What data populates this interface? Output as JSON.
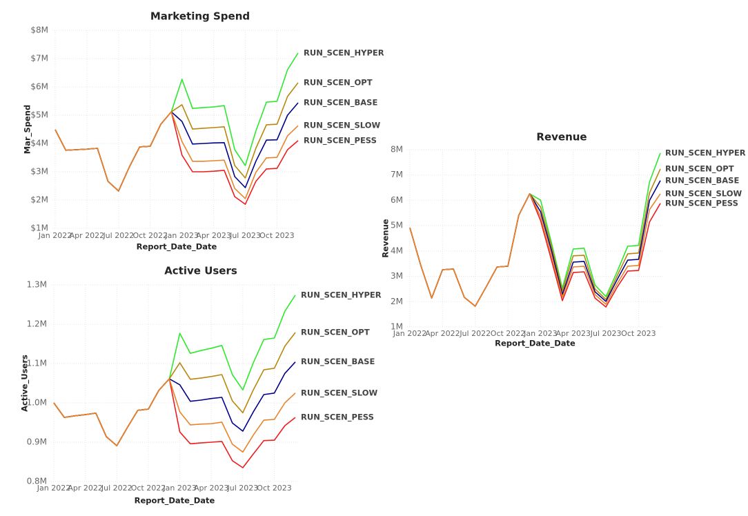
{
  "chart_data": [
    {
      "type": "line",
      "title": "Marketing Spend",
      "x_label": "Report_Date_Date",
      "y_label": "Mar_Spend",
      "categories": [
        "Jan 2022",
        null,
        null,
        "Apr 2022",
        null,
        null,
        "Jul 2022",
        null,
        null,
        "Oct 2022",
        null,
        null,
        "Jan 2023",
        null,
        null,
        "Apr 2023",
        null,
        null,
        "Jul 2023",
        null,
        null,
        "Oct 2023",
        null,
        null
      ],
      "ylim": [
        1000000,
        8000000
      ],
      "yticks": [
        {
          "value": 1000000,
          "label": "$1M"
        },
        {
          "value": 2000000,
          "label": "$2M"
        },
        {
          "value": 3000000,
          "label": "$3M"
        },
        {
          "value": 4000000,
          "label": "$4M"
        },
        {
          "value": 5000000,
          "label": "$5M"
        },
        {
          "value": 6000000,
          "label": "$6M"
        },
        {
          "value": 7000000,
          "label": "$7M"
        },
        {
          "value": 8000000,
          "label": "$8M"
        }
      ],
      "grid": true,
      "series": [
        {
          "name": "RUN_SCEN_HYPER",
          "color": "#2ee82e",
          "values": [
            4490000,
            3760000,
            3780000,
            3800000,
            3830000,
            2660000,
            2320000,
            3150000,
            3880000,
            3900000,
            4680000,
            5120000,
            6270000,
            5240000,
            5270000,
            5290000,
            5340000,
            3780000,
            3220000,
            4440000,
            5460000,
            5490000,
            6610000,
            7200000
          ]
        },
        {
          "name": "RUN_SCEN_OPT",
          "color": "#b8860b",
          "values": [
            4490000,
            3760000,
            3780000,
            3800000,
            3830000,
            2660000,
            2320000,
            3150000,
            3880000,
            3900000,
            4680000,
            5120000,
            5370000,
            4510000,
            4540000,
            4560000,
            4590000,
            3220000,
            2780000,
            3830000,
            4660000,
            4680000,
            5660000,
            6150000
          ]
        },
        {
          "name": "RUN_SCEN_BASE",
          "color": "#00008b",
          "values": [
            4490000,
            3760000,
            3780000,
            3800000,
            3830000,
            2660000,
            2320000,
            3150000,
            3880000,
            3900000,
            4680000,
            5120000,
            4780000,
            3980000,
            4000000,
            4020000,
            4030000,
            2830000,
            2440000,
            3370000,
            4120000,
            4130000,
            5000000,
            5440000
          ]
        },
        {
          "name": "RUN_SCEN_PESS",
          "color": "#ee1c1c",
          "values": [
            4490000,
            3760000,
            3780000,
            3800000,
            3830000,
            2660000,
            2320000,
            3150000,
            3880000,
            3900000,
            4680000,
            5120000,
            3590000,
            3000000,
            3000000,
            3020000,
            3050000,
            2120000,
            1850000,
            2660000,
            3100000,
            3120000,
            3780000,
            4100000
          ]
        },
        {
          "name": "RUN_SCEN_SLOW",
          "color": "#e8842a",
          "values": [
            4490000,
            3760000,
            3780000,
            3800000,
            3830000,
            2660000,
            2320000,
            3150000,
            3880000,
            3900000,
            4680000,
            5120000,
            4070000,
            3370000,
            3370000,
            3390000,
            3410000,
            2410000,
            2050000,
            2980000,
            3490000,
            3510000,
            4270000,
            4630000
          ]
        }
      ]
    },
    {
      "type": "line",
      "title": "Active Users",
      "x_label": "Report_Date_Date",
      "y_label": "Active_Users",
      "categories": [
        "Jan 2022",
        null,
        null,
        "Apr 2022",
        null,
        null,
        "Jul 2022",
        null,
        null,
        "Oct 2022",
        null,
        null,
        "Jan 2023",
        null,
        null,
        "Apr 2023",
        null,
        null,
        "Jul 2023",
        null,
        null,
        "Oct 2023",
        null,
        null
      ],
      "ylim": [
        800000,
        1300000
      ],
      "yticks": [
        {
          "value": 800000,
          "label": "0.8M"
        },
        {
          "value": 900000,
          "label": "0.9M"
        },
        {
          "value": 1000000,
          "label": "1.0M"
        },
        {
          "value": 1100000,
          "label": "1.1M"
        },
        {
          "value": 1200000,
          "label": "1.2M"
        },
        {
          "value": 1300000,
          "label": "1.3M"
        }
      ],
      "grid": true,
      "series": [
        {
          "name": "RUN_SCEN_HYPER",
          "color": "#2ee82e",
          "values": [
            1000000,
            963000,
            967000,
            970000,
            974000,
            914000,
            891000,
            937000,
            981000,
            984000,
            1032000,
            1061000,
            1177000,
            1126000,
            1133000,
            1139000,
            1146000,
            1072000,
            1033000,
            1102000,
            1161000,
            1165000,
            1233000,
            1274000
          ]
        },
        {
          "name": "RUN_SCEN_OPT",
          "color": "#b8860b",
          "values": [
            1000000,
            963000,
            967000,
            970000,
            974000,
            914000,
            891000,
            937000,
            981000,
            984000,
            1032000,
            1061000,
            1102000,
            1060000,
            1063000,
            1067000,
            1072000,
            1005000,
            975000,
            1033000,
            1084000,
            1088000,
            1144000,
            1179000
          ]
        },
        {
          "name": "RUN_SCEN_BASE",
          "color": "#00008b",
          "values": [
            1000000,
            963000,
            967000,
            970000,
            974000,
            914000,
            891000,
            937000,
            981000,
            984000,
            1032000,
            1061000,
            1046000,
            1004000,
            1007000,
            1011000,
            1014000,
            949000,
            928000,
            977000,
            1021000,
            1025000,
            1075000,
            1104000
          ]
        },
        {
          "name": "RUN_SCEN_PESS",
          "color": "#ee1c1c",
          "values": [
            1000000,
            963000,
            967000,
            970000,
            974000,
            914000,
            891000,
            937000,
            981000,
            984000,
            1032000,
            1061000,
            926000,
            896000,
            898000,
            900000,
            902000,
            853000,
            835000,
            870000,
            904000,
            905000,
            942000,
            963000
          ]
        },
        {
          "name": "RUN_SCEN_SLOW",
          "color": "#e8842a",
          "values": [
            1000000,
            963000,
            967000,
            970000,
            974000,
            914000,
            891000,
            937000,
            981000,
            984000,
            1032000,
            1061000,
            977000,
            944000,
            946000,
            947000,
            951000,
            895000,
            875000,
            918000,
            956000,
            958000,
            1000000,
            1025000
          ]
        }
      ]
    },
    {
      "type": "line",
      "title": "Revenue",
      "x_label": "Report_Date_Date",
      "y_label": "Revenue",
      "categories": [
        "Jan 2022",
        null,
        null,
        "Apr 2022",
        null,
        null,
        "Jul 2022",
        null,
        null,
        "Oct 2022",
        null,
        null,
        "Jan 2023",
        null,
        null,
        "Apr 2023",
        null,
        null,
        "Jul 2023",
        null,
        null,
        "Oct 2023",
        null,
        null
      ],
      "ylim": [
        1000000,
        8000000
      ],
      "yticks": [
        {
          "value": 1000000,
          "label": "1M"
        },
        {
          "value": 2000000,
          "label": "2M"
        },
        {
          "value": 3000000,
          "label": "3M"
        },
        {
          "value": 4000000,
          "label": "4M"
        },
        {
          "value": 5000000,
          "label": "5M"
        },
        {
          "value": 6000000,
          "label": "6M"
        },
        {
          "value": 7000000,
          "label": "7M"
        },
        {
          "value": 8000000,
          "label": "8M"
        }
      ],
      "grid": true,
      "series": [
        {
          "name": "RUN_SCEN_HYPER",
          "color": "#2ee82e",
          "values": [
            4920000,
            3430000,
            2140000,
            3260000,
            3290000,
            2170000,
            1820000,
            2580000,
            3370000,
            3400000,
            5410000,
            6260000,
            6010000,
            4320000,
            2530000,
            4080000,
            4110000,
            2660000,
            2200000,
            3150000,
            4190000,
            4220000,
            6720000,
            7870000
          ]
        },
        {
          "name": "RUN_SCEN_OPT",
          "color": "#b8860b",
          "values": [
            4920000,
            3430000,
            2140000,
            3260000,
            3290000,
            2170000,
            1820000,
            2580000,
            3370000,
            3400000,
            5410000,
            6260000,
            5740000,
            4190000,
            2420000,
            3810000,
            3830000,
            2500000,
            2090000,
            2990000,
            3890000,
            3920000,
            6290000,
            7240000
          ]
        },
        {
          "name": "RUN_SCEN_BASE",
          "color": "#00008b",
          "values": [
            4920000,
            3430000,
            2140000,
            3260000,
            3290000,
            2170000,
            1820000,
            2580000,
            3370000,
            3400000,
            5410000,
            6260000,
            5550000,
            4020000,
            2280000,
            3560000,
            3590000,
            2390000,
            2010000,
            2850000,
            3640000,
            3670000,
            5990000,
            6780000
          ]
        },
        {
          "name": "RUN_SCEN_PESS",
          "color": "#ee1c1c",
          "values": [
            4920000,
            3430000,
            2140000,
            3260000,
            3290000,
            2170000,
            1820000,
            2580000,
            3370000,
            3400000,
            5410000,
            6260000,
            5200000,
            3640000,
            2040000,
            3150000,
            3180000,
            2140000,
            1790000,
            2550000,
            3210000,
            3230000,
            5140000,
            5880000
          ]
        },
        {
          "name": "RUN_SCEN_SLOW",
          "color": "#e8842a",
          "values": [
            4920000,
            3430000,
            2140000,
            3260000,
            3290000,
            2170000,
            1820000,
            2580000,
            3370000,
            3400000,
            5410000,
            6260000,
            5360000,
            3830000,
            2170000,
            3370000,
            3400000,
            2280000,
            1900000,
            2690000,
            3400000,
            3430000,
            5630000,
            6260000
          ]
        }
      ]
    }
  ]
}
